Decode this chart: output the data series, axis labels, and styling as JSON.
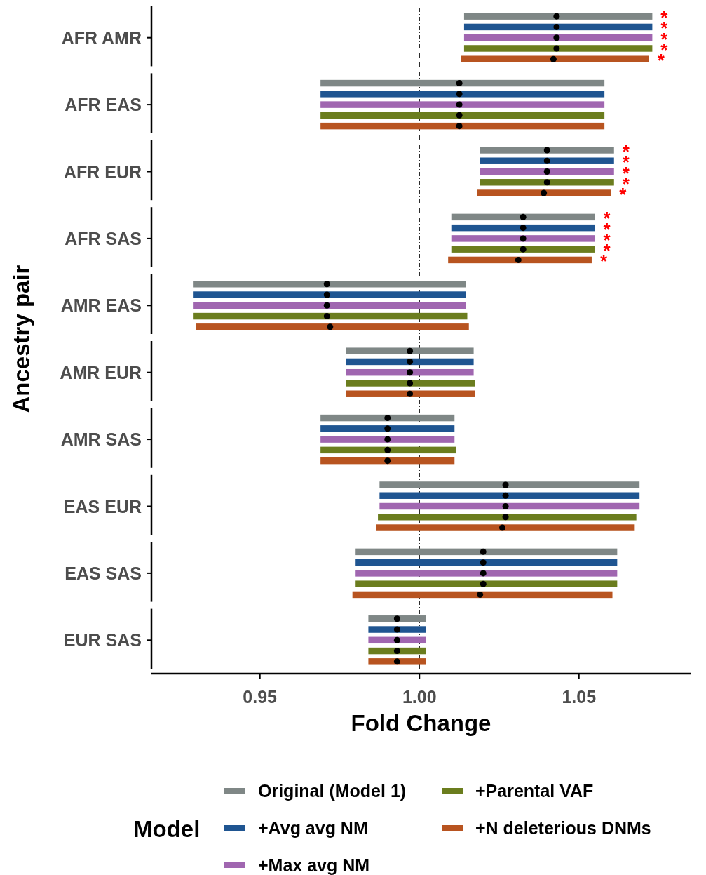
{
  "chart_data": {
    "type": "bar",
    "orientation": "horizontal",
    "xlabel": "Fold Change",
    "ylabel": "Ancestry pair",
    "legend_title": "Model",
    "legend": "bottom",
    "marker": "circle",
    "grid": false,
    "categories": [
      "AFR AMR",
      "AFR EAS",
      "AFR EUR",
      "AFR SAS",
      "AMR EAS",
      "AMR EUR",
      "AMR SAS",
      "EAS EUR",
      "EAS SAS",
      "EUR SAS"
    ],
    "xlim": [
      0.916,
      1.085
    ],
    "xticks": [
      {
        "value": 0.95,
        "label": "0.95"
      },
      {
        "value": 1,
        "label": "1.00"
      },
      {
        "value": 1.05,
        "label": "1.05"
      }
    ],
    "ref_lines": [
      {
        "axis": "x",
        "value": 1,
        "line_style": "dashed",
        "color": "#000000"
      }
    ],
    "series": [
      {
        "name": "Original (Model 1)",
        "color": "#7f8786",
        "base": [
          1.014,
          0.969,
          1.019,
          1.01,
          0.929,
          0.977,
          0.969,
          0.9875,
          0.98,
          0.984
        ],
        "values": [
          0.059,
          0.089,
          0.042,
          0.045,
          0.0855,
          0.04,
          0.042,
          0.0815,
          0.082,
          0.018
        ],
        "value_labels": [
          "*",
          null,
          "*",
          "*",
          null,
          null,
          null,
          null,
          null,
          null
        ]
      },
      {
        "name": "+Avg avg NM",
        "color": "#1f5591",
        "base": [
          1.014,
          0.969,
          1.019,
          1.01,
          0.929,
          0.977,
          0.969,
          0.9875,
          0.98,
          0.984
        ],
        "values": [
          0.059,
          0.089,
          0.042,
          0.045,
          0.0855,
          0.04,
          0.042,
          0.0815,
          0.082,
          0.018
        ],
        "value_labels": [
          "*",
          null,
          "*",
          "*",
          null,
          null,
          null,
          null,
          null,
          null
        ]
      },
      {
        "name": "+Max avg NM",
        "color": "#a066b0",
        "base": [
          1.014,
          0.969,
          1.019,
          1.01,
          0.929,
          0.977,
          0.969,
          0.9875,
          0.98,
          0.984
        ],
        "values": [
          0.059,
          0.089,
          0.042,
          0.045,
          0.0855,
          0.04,
          0.042,
          0.0815,
          0.082,
          0.018
        ],
        "value_labels": [
          "*",
          null,
          "*",
          "*",
          null,
          null,
          null,
          null,
          null,
          null
        ]
      },
      {
        "name": "+Parental VAF",
        "color": "#6b7d1e",
        "base": [
          1.014,
          0.969,
          1.019,
          1.01,
          0.929,
          0.977,
          0.969,
          0.987,
          0.98,
          0.984
        ],
        "values": [
          0.059,
          0.089,
          0.042,
          0.045,
          0.086,
          0.0405,
          0.0425,
          0.081,
          0.082,
          0.018
        ],
        "value_labels": [
          "*",
          null,
          "*",
          "*",
          null,
          null,
          null,
          null,
          null,
          null
        ]
      },
      {
        "name": "+N deleterious DNMs",
        "color": "#b85420",
        "base": [
          1.013,
          0.969,
          1.018,
          1.009,
          0.93,
          0.977,
          0.969,
          0.9865,
          0.979,
          0.984
        ],
        "values": [
          0.059,
          0.089,
          0.042,
          0.045,
          0.0855,
          0.0405,
          0.042,
          0.081,
          0.0815,
          0.018
        ],
        "value_labels": [
          "*",
          null,
          "*",
          "*",
          null,
          null,
          null,
          null,
          null,
          null
        ]
      },
      {
        "type": "scatter",
        "color": "#000000",
        "values": [
          1.043,
          1.0125,
          1.04,
          1.0325,
          0.971,
          0.997,
          0.99,
          1.027,
          1.02,
          0.993
        ]
      },
      {
        "type": "scatter",
        "color": "#000000",
        "values": [
          1.043,
          1.0125,
          1.04,
          1.0325,
          0.971,
          0.997,
          0.99,
          1.027,
          1.02,
          0.993
        ]
      },
      {
        "type": "scatter",
        "color": "#000000",
        "values": [
          1.043,
          1.0125,
          1.04,
          1.0325,
          0.971,
          0.997,
          0.99,
          1.027,
          1.02,
          0.993
        ]
      },
      {
        "type": "scatter",
        "color": "#000000",
        "values": [
          1.043,
          1.0125,
          1.04,
          1.0325,
          0.971,
          0.997,
          0.99,
          1.027,
          1.02,
          0.993
        ]
      },
      {
        "type": "scatter",
        "color": "#000000",
        "values": [
          1.042,
          1.0125,
          1.039,
          1.031,
          0.972,
          0.997,
          0.99,
          1.026,
          1.019,
          0.993
        ]
      }
    ]
  }
}
